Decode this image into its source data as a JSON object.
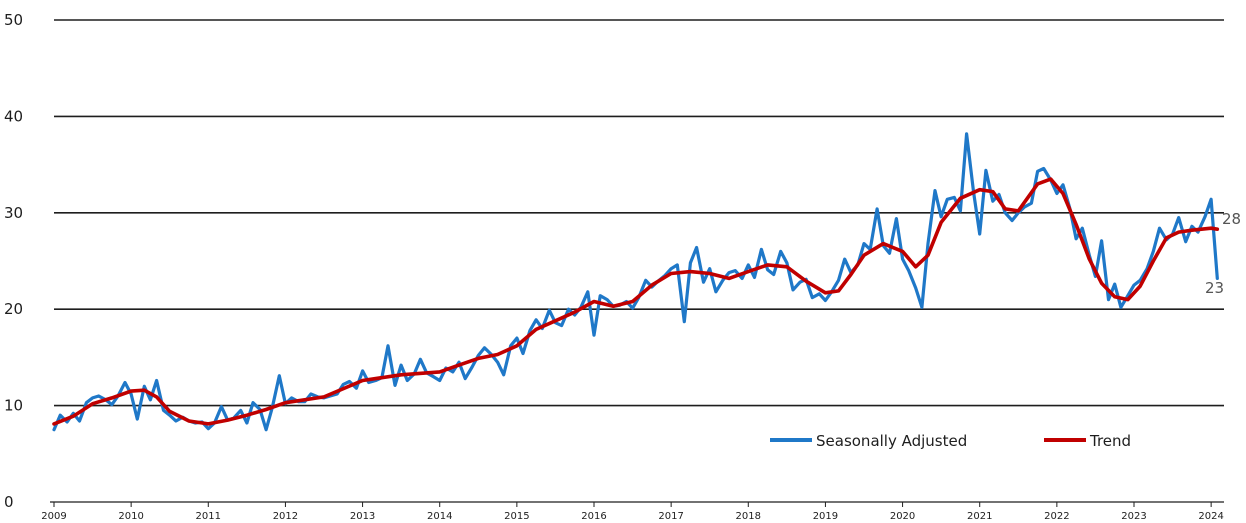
{
  "chart_data": {
    "type": "line",
    "title": "",
    "xlabel": "",
    "ylabel": "",
    "ylim": [
      0,
      50
    ],
    "xlim": [
      2009.0,
      2024.1667
    ],
    "grid": "horizontal",
    "legend_position": "bottom-right",
    "yticks": [
      "0",
      "10",
      "20",
      "30",
      "40",
      "50"
    ],
    "xticks": [
      "2009",
      "2010",
      "2011",
      "2012",
      "2013",
      "2014",
      "2015",
      "2016",
      "2017",
      "2018",
      "2019",
      "2020",
      "2021",
      "2022",
      "2023",
      "2024"
    ],
    "colors": {
      "seasonally_adjusted": "#1f78c8",
      "trend": "#c00000",
      "grid": "#1e1e1e"
    },
    "end_labels": {
      "trend": "28",
      "seasonally_adjusted": "23"
    },
    "series": [
      {
        "name": "Seasonally Adjusted",
        "points": [
          [
            2009.0,
            7.5
          ],
          [
            2009.08,
            9.0
          ],
          [
            2009.17,
            8.3
          ],
          [
            2009.25,
            9.2
          ],
          [
            2009.33,
            8.4
          ],
          [
            2009.42,
            10.3
          ],
          [
            2009.5,
            10.8
          ],
          [
            2009.58,
            11.0
          ],
          [
            2009.67,
            10.6
          ],
          [
            2009.75,
            10.1
          ],
          [
            2009.83,
            11.0
          ],
          [
            2009.92,
            12.4
          ],
          [
            2010.0,
            11.2
          ],
          [
            2010.08,
            8.6
          ],
          [
            2010.17,
            12.0
          ],
          [
            2010.25,
            10.6
          ],
          [
            2010.33,
            12.6
          ],
          [
            2010.42,
            9.5
          ],
          [
            2010.5,
            9.0
          ],
          [
            2010.58,
            8.4
          ],
          [
            2010.67,
            8.8
          ],
          [
            2010.75,
            8.4
          ],
          [
            2010.83,
            8.2
          ],
          [
            2010.92,
            8.3
          ],
          [
            2011.0,
            7.6
          ],
          [
            2011.08,
            8.2
          ],
          [
            2011.17,
            9.9
          ],
          [
            2011.25,
            8.5
          ],
          [
            2011.33,
            8.7
          ],
          [
            2011.42,
            9.5
          ],
          [
            2011.5,
            8.2
          ],
          [
            2011.58,
            10.3
          ],
          [
            2011.67,
            9.6
          ],
          [
            2011.75,
            7.5
          ],
          [
            2011.83,
            9.8
          ],
          [
            2011.92,
            13.1
          ],
          [
            2012.0,
            10.2
          ],
          [
            2012.08,
            10.8
          ],
          [
            2012.17,
            10.4
          ],
          [
            2012.25,
            10.4
          ],
          [
            2012.33,
            11.2
          ],
          [
            2012.42,
            10.9
          ],
          [
            2012.5,
            10.8
          ],
          [
            2012.58,
            11.0
          ],
          [
            2012.67,
            11.2
          ],
          [
            2012.75,
            12.2
          ],
          [
            2012.83,
            12.5
          ],
          [
            2012.92,
            11.8
          ],
          [
            2013.0,
            13.6
          ],
          [
            2013.08,
            12.4
          ],
          [
            2013.17,
            12.6
          ],
          [
            2013.25,
            12.9
          ],
          [
            2013.33,
            16.2
          ],
          [
            2013.42,
            12.1
          ],
          [
            2013.5,
            14.2
          ],
          [
            2013.58,
            12.6
          ],
          [
            2013.67,
            13.3
          ],
          [
            2013.75,
            14.8
          ],
          [
            2013.83,
            13.4
          ],
          [
            2013.92,
            13.0
          ],
          [
            2014.0,
            12.6
          ],
          [
            2014.08,
            13.9
          ],
          [
            2014.17,
            13.5
          ],
          [
            2014.25,
            14.5
          ],
          [
            2014.33,
            12.8
          ],
          [
            2014.42,
            14.0
          ],
          [
            2014.5,
            15.2
          ],
          [
            2014.58,
            16.0
          ],
          [
            2014.67,
            15.3
          ],
          [
            2014.75,
            14.5
          ],
          [
            2014.83,
            13.2
          ],
          [
            2014.92,
            16.2
          ],
          [
            2015.0,
            17.0
          ],
          [
            2015.08,
            15.4
          ],
          [
            2015.17,
            17.8
          ],
          [
            2015.25,
            18.9
          ],
          [
            2015.33,
            18.0
          ],
          [
            2015.42,
            19.9
          ],
          [
            2015.5,
            18.6
          ],
          [
            2015.58,
            18.3
          ],
          [
            2015.67,
            20.0
          ],
          [
            2015.75,
            19.4
          ],
          [
            2015.83,
            20.2
          ],
          [
            2015.92,
            21.8
          ],
          [
            2016.0,
            17.3
          ],
          [
            2016.08,
            21.4
          ],
          [
            2016.17,
            21.0
          ],
          [
            2016.25,
            20.3
          ],
          [
            2016.33,
            20.4
          ],
          [
            2016.42,
            20.8
          ],
          [
            2016.5,
            20.1
          ],
          [
            2016.58,
            21.2
          ],
          [
            2016.67,
            23.0
          ],
          [
            2016.75,
            22.3
          ],
          [
            2016.83,
            22.9
          ],
          [
            2016.92,
            23.5
          ],
          [
            2017.0,
            24.2
          ],
          [
            2017.08,
            24.6
          ],
          [
            2017.17,
            18.7
          ],
          [
            2017.25,
            24.8
          ],
          [
            2017.33,
            26.4
          ],
          [
            2017.42,
            22.8
          ],
          [
            2017.5,
            24.2
          ],
          [
            2017.58,
            21.8
          ],
          [
            2017.67,
            23.0
          ],
          [
            2017.75,
            23.8
          ],
          [
            2017.83,
            24.0
          ],
          [
            2017.92,
            23.2
          ],
          [
            2018.0,
            24.6
          ],
          [
            2018.08,
            23.3
          ],
          [
            2018.17,
            26.2
          ],
          [
            2018.25,
            24.1
          ],
          [
            2018.33,
            23.6
          ],
          [
            2018.42,
            26.0
          ],
          [
            2018.5,
            24.8
          ],
          [
            2018.58,
            22.0
          ],
          [
            2018.67,
            22.8
          ],
          [
            2018.75,
            23.1
          ],
          [
            2018.83,
            21.2
          ],
          [
            2018.92,
            21.6
          ],
          [
            2019.0,
            20.9
          ],
          [
            2019.08,
            21.8
          ],
          [
            2019.17,
            23.0
          ],
          [
            2019.25,
            25.2
          ],
          [
            2019.33,
            23.8
          ],
          [
            2019.42,
            24.6
          ],
          [
            2019.5,
            26.8
          ],
          [
            2019.58,
            26.2
          ],
          [
            2019.67,
            30.4
          ],
          [
            2019.75,
            26.6
          ],
          [
            2019.83,
            25.8
          ],
          [
            2019.92,
            29.4
          ],
          [
            2020.0,
            25.2
          ],
          [
            2020.08,
            24.0
          ],
          [
            2020.17,
            22.2
          ],
          [
            2020.25,
            20.2
          ],
          [
            2020.33,
            26.8
          ],
          [
            2020.42,
            32.3
          ],
          [
            2020.5,
            29.6
          ],
          [
            2020.58,
            31.4
          ],
          [
            2020.67,
            31.6
          ],
          [
            2020.75,
            30.2
          ],
          [
            2020.83,
            38.2
          ],
          [
            2020.92,
            32.2
          ],
          [
            2021.0,
            27.8
          ],
          [
            2021.08,
            34.4
          ],
          [
            2021.17,
            31.2
          ],
          [
            2021.25,
            31.9
          ],
          [
            2021.33,
            30.0
          ],
          [
            2021.42,
            29.2
          ],
          [
            2021.5,
            30.0
          ],
          [
            2021.58,
            30.6
          ],
          [
            2021.67,
            31.0
          ],
          [
            2021.75,
            34.3
          ],
          [
            2021.83,
            34.6
          ],
          [
            2021.92,
            33.4
          ],
          [
            2022.0,
            32.0
          ],
          [
            2022.08,
            32.9
          ],
          [
            2022.17,
            30.4
          ],
          [
            2022.25,
            27.3
          ],
          [
            2022.33,
            28.4
          ],
          [
            2022.42,
            25.6
          ],
          [
            2022.5,
            23.4
          ],
          [
            2022.58,
            27.1
          ],
          [
            2022.67,
            21.0
          ],
          [
            2022.75,
            22.6
          ],
          [
            2022.83,
            20.2
          ],
          [
            2022.92,
            21.4
          ],
          [
            2023.0,
            22.5
          ],
          [
            2023.08,
            23.0
          ],
          [
            2023.17,
            24.2
          ],
          [
            2023.25,
            26.0
          ],
          [
            2023.33,
            28.4
          ],
          [
            2023.42,
            27.2
          ],
          [
            2023.5,
            27.8
          ],
          [
            2023.58,
            29.5
          ],
          [
            2023.67,
            27.0
          ],
          [
            2023.75,
            28.6
          ],
          [
            2023.83,
            28.0
          ],
          [
            2023.92,
            29.6
          ],
          [
            2024.0,
            31.4
          ],
          [
            2024.08,
            23.2
          ]
        ]
      },
      {
        "name": "Trend",
        "points": [
          [
            2009.0,
            8.1
          ],
          [
            2009.25,
            8.9
          ],
          [
            2009.5,
            10.2
          ],
          [
            2009.75,
            10.8
          ],
          [
            2010.0,
            11.5
          ],
          [
            2010.17,
            11.6
          ],
          [
            2010.33,
            10.9
          ],
          [
            2010.5,
            9.4
          ],
          [
            2010.75,
            8.4
          ],
          [
            2011.0,
            8.1
          ],
          [
            2011.25,
            8.5
          ],
          [
            2011.5,
            9.0
          ],
          [
            2011.75,
            9.6
          ],
          [
            2012.0,
            10.3
          ],
          [
            2012.5,
            10.9
          ],
          [
            2013.0,
            12.6
          ],
          [
            2013.5,
            13.2
          ],
          [
            2014.0,
            13.5
          ],
          [
            2014.25,
            14.2
          ],
          [
            2014.5,
            14.9
          ],
          [
            2014.75,
            15.3
          ],
          [
            2015.0,
            16.2
          ],
          [
            2015.25,
            17.9
          ],
          [
            2015.5,
            18.8
          ],
          [
            2015.75,
            19.7
          ],
          [
            2016.0,
            20.8
          ],
          [
            2016.25,
            20.3
          ],
          [
            2016.5,
            20.8
          ],
          [
            2016.75,
            22.5
          ],
          [
            2017.0,
            23.7
          ],
          [
            2017.25,
            23.9
          ],
          [
            2017.5,
            23.7
          ],
          [
            2017.75,
            23.2
          ],
          [
            2018.0,
            23.9
          ],
          [
            2018.25,
            24.6
          ],
          [
            2018.5,
            24.4
          ],
          [
            2018.75,
            22.9
          ],
          [
            2019.0,
            21.7
          ],
          [
            2019.17,
            21.9
          ],
          [
            2019.33,
            23.6
          ],
          [
            2019.5,
            25.6
          ],
          [
            2019.75,
            26.8
          ],
          [
            2020.0,
            26.0
          ],
          [
            2020.17,
            24.4
          ],
          [
            2020.33,
            25.6
          ],
          [
            2020.5,
            29.0
          ],
          [
            2020.75,
            31.5
          ],
          [
            2021.0,
            32.4
          ],
          [
            2021.17,
            32.2
          ],
          [
            2021.33,
            30.4
          ],
          [
            2021.5,
            30.2
          ],
          [
            2021.75,
            33.0
          ],
          [
            2021.92,
            33.5
          ],
          [
            2022.08,
            32.0
          ],
          [
            2022.25,
            28.8
          ],
          [
            2022.42,
            25.2
          ],
          [
            2022.58,
            22.7
          ],
          [
            2022.75,
            21.3
          ],
          [
            2022.92,
            21.0
          ],
          [
            2023.08,
            22.4
          ],
          [
            2023.25,
            25.0
          ],
          [
            2023.42,
            27.4
          ],
          [
            2023.58,
            28.0
          ],
          [
            2023.75,
            28.2
          ],
          [
            2024.0,
            28.4
          ],
          [
            2024.08,
            28.3
          ]
        ]
      }
    ]
  }
}
